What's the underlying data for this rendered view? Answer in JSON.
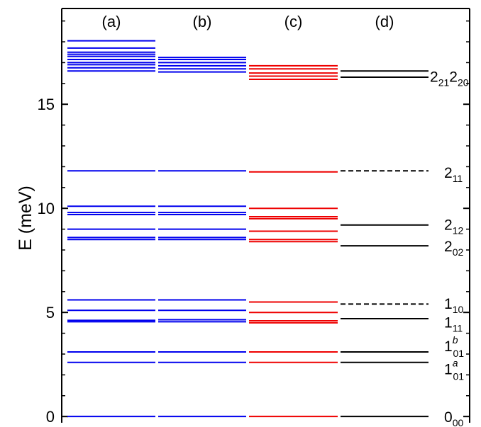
{
  "chart_data": {
    "type": "energy-level-diagram",
    "title": "",
    "ylabel": "E (meV)",
    "ylim": [
      -0.3,
      19.6
    ],
    "yticks": [
      0,
      5,
      10,
      15
    ],
    "yticks_labels": [
      "0",
      "5",
      "10",
      "15"
    ],
    "columns": [
      {
        "name": "(a)",
        "color": "#0000ee",
        "levels": [
          {
            "e": 0.0
          },
          {
            "e": 2.6
          },
          {
            "e": 3.1
          },
          {
            "e": 4.55
          },
          {
            "e": 4.62
          },
          {
            "e": 5.1
          },
          {
            "e": 5.6
          },
          {
            "e": 8.5
          },
          {
            "e": 8.6
          },
          {
            "e": 9.0
          },
          {
            "e": 9.7
          },
          {
            "e": 9.8
          },
          {
            "e": 10.1
          },
          {
            "e": 11.8
          },
          {
            "e": 16.6
          },
          {
            "e": 16.75
          },
          {
            "e": 16.9
          },
          {
            "e": 17.0
          },
          {
            "e": 17.15
          },
          {
            "e": 17.3
          },
          {
            "e": 17.4
          },
          {
            "e": 17.5
          },
          {
            "e": 17.7
          },
          {
            "e": 18.05
          }
        ]
      },
      {
        "name": "(b)",
        "color": "#0000ee",
        "levels": [
          {
            "e": 0.0
          },
          {
            "e": 2.6
          },
          {
            "e": 3.1
          },
          {
            "e": 4.55
          },
          {
            "e": 4.65
          },
          {
            "e": 5.1
          },
          {
            "e": 5.6
          },
          {
            "e": 8.5
          },
          {
            "e": 8.6
          },
          {
            "e": 9.0
          },
          {
            "e": 9.7
          },
          {
            "e": 9.8
          },
          {
            "e": 10.1
          },
          {
            "e": 11.8
          },
          {
            "e": 16.55
          },
          {
            "e": 16.7
          },
          {
            "e": 16.85
          },
          {
            "e": 17.0
          },
          {
            "e": 17.15
          },
          {
            "e": 17.25
          }
        ]
      },
      {
        "name": "(c)",
        "color": "#ee0000",
        "levels": [
          {
            "e": 0.0
          },
          {
            "e": 2.6
          },
          {
            "e": 3.1
          },
          {
            "e": 4.5
          },
          {
            "e": 4.6
          },
          {
            "e": 5.0
          },
          {
            "e": 5.5
          },
          {
            "e": 8.4
          },
          {
            "e": 8.5
          },
          {
            "e": 8.9
          },
          {
            "e": 9.5
          },
          {
            "e": 9.6
          },
          {
            "e": 10.0
          },
          {
            "e": 11.75
          },
          {
            "e": 16.2
          },
          {
            "e": 16.35
          },
          {
            "e": 16.5
          },
          {
            "e": 16.7
          },
          {
            "e": 16.85
          }
        ]
      },
      {
        "name": "(d)",
        "color": "#000000",
        "levels": [
          {
            "e": 0.0
          },
          {
            "e": 2.6
          },
          {
            "e": 3.1
          },
          {
            "e": 4.7
          },
          {
            "e": 5.4,
            "dashed": true
          },
          {
            "e": 8.2
          },
          {
            "e": 9.2
          },
          {
            "e": 11.8,
            "dashed": true
          },
          {
            "e": 16.3
          },
          {
            "e": 16.6
          }
        ]
      }
    ],
    "level_labels": [
      {
        "base": "0",
        "sub": "00",
        "sup": "",
        "e": 0.0
      },
      {
        "base": "1",
        "sub": "01",
        "sup": "a",
        "e": 2.3
      },
      {
        "base": "1",
        "sub": "01",
        "sup": "b",
        "e": 3.4
      },
      {
        "base": "1",
        "sub": "11",
        "sup": "",
        "e": 4.55
      },
      {
        "base": "1",
        "sub": "10",
        "sup": "",
        "e": 5.45
      },
      {
        "base": "2",
        "sub": "02",
        "sup": "",
        "e": 8.2
      },
      {
        "base": "2",
        "sub": "12",
        "sup": "",
        "e": 9.25
      },
      {
        "base": "2",
        "sub": "11",
        "sup": "",
        "e": 11.75
      },
      {
        "base": "2",
        "sub": "21",
        "sup": "",
        "e": 16.35,
        "base2": "2",
        "sub2": "20"
      }
    ]
  }
}
